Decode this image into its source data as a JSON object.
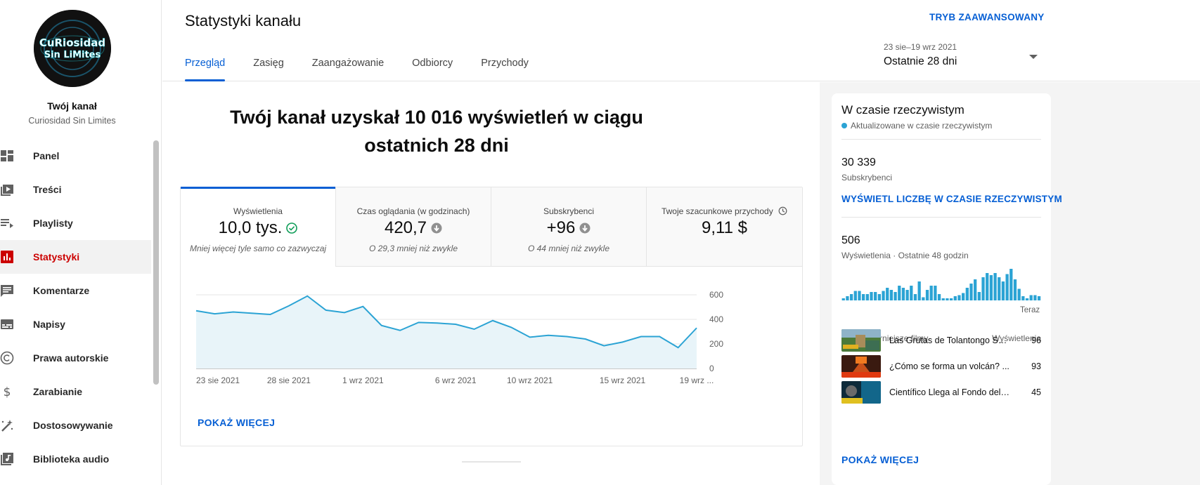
{
  "sidebar": {
    "avatar_text": "CuRiosidad Sin LiMites",
    "channel_title": "Twój kanał",
    "channel_name": "Curiosidad Sin Limites",
    "items": [
      {
        "label": "Panel",
        "icon": "dashboard-icon",
        "active": false
      },
      {
        "label": "Treści",
        "icon": "content-icon",
        "active": false
      },
      {
        "label": "Playlisty",
        "icon": "playlist-icon",
        "active": false
      },
      {
        "label": "Statystyki",
        "icon": "analytics-icon",
        "active": true
      },
      {
        "label": "Komentarze",
        "icon": "comments-icon",
        "active": false
      },
      {
        "label": "Napisy",
        "icon": "subtitles-icon",
        "active": false
      },
      {
        "label": "Prawa autorskie",
        "icon": "copyright-icon",
        "active": false
      },
      {
        "label": "Zarabianie",
        "icon": "dollar-icon",
        "active": false
      },
      {
        "label": "Dostosowywanie",
        "icon": "magic-wand-icon",
        "active": false
      },
      {
        "label": "Biblioteka audio",
        "icon": "audio-library-icon",
        "active": false
      }
    ]
  },
  "header": {
    "title": "Statystyki kanału",
    "advanced_mode": "TRYB ZAAWANSOWANY",
    "tabs": [
      "Przegląd",
      "Zasięg",
      "Zaangażowanie",
      "Odbiorcy",
      "Przychody"
    ],
    "active_tab": "Przegląd",
    "date_range": "23 sie–19 wrz 2021",
    "date_label": "Ostatnie 28 dni"
  },
  "main": {
    "headline": "Twój kanał uzyskał 10 016 wyświetleń w ciągu ostatnich 28 dni",
    "metrics": [
      {
        "title": "Wyświetlenia",
        "value": "10,0 tys.",
        "note": "Mniej więcej tyle samo co zazwyczaj",
        "icon": "check-circle-icon"
      },
      {
        "title": "Czas oglądania (w godzinach)",
        "value": "420,7",
        "note": "O 29,3 mniej niż zwykle",
        "icon": "arrow-down-circle-icon"
      },
      {
        "title": "Subskrybenci",
        "value": "+96",
        "note": "O 44 mniej niż zwykle",
        "icon": "arrow-down-circle-icon"
      },
      {
        "title": "Twoje szacunkowe przychody",
        "value": "9,11 $",
        "note": "",
        "icon": "clock-icon"
      }
    ],
    "show_more": "POKAŻ WIĘCEJ"
  },
  "chart_data": {
    "type": "area",
    "x": [
      "23 sie 2021",
      "24",
      "25",
      "26",
      "27",
      "28 sie 2021",
      "29",
      "30",
      "31",
      "1 wrz 2021",
      "2",
      "3",
      "4",
      "5",
      "6 wrz 2021",
      "7",
      "8",
      "9",
      "10 wrz 2021",
      "11",
      "12",
      "13",
      "14",
      "15 wrz 2021",
      "16",
      "17",
      "18",
      "19 wrz 2021"
    ],
    "xtick_labels": [
      "23 sie 2021",
      "28 sie 2021",
      "1 wrz 2021",
      "6 wrz 2021",
      "10 wrz 2021",
      "15 wrz 2021",
      "19 wrz ..."
    ],
    "xtick_indices": [
      0,
      5,
      9,
      14,
      18,
      23,
      27
    ],
    "series": [
      {
        "values": [
          470,
          445,
          460,
          450,
          440,
          510,
          590,
          475,
          455,
          505,
          350,
          310,
          375,
          370,
          360,
          320,
          390,
          335,
          255,
          270,
          260,
          240,
          185,
          215,
          260,
          260,
          170,
          330
        ]
      }
    ],
    "ylim": [
      0,
      600
    ],
    "yticks": [
      0,
      200,
      400,
      600
    ],
    "grid": true,
    "color": "#2ba3d4",
    "fill": "#e8f4f9"
  },
  "realtime": {
    "title": "W czasie rzeczywistym",
    "live_text": "Aktualizowane w czasie rzeczywistym",
    "subscribers_value": "30 339",
    "subscribers_label": "Subskrybenci",
    "live_link": "WYŚWIETL LICZBĘ W CZASIE RZECZYWISTYM",
    "views_value": "506",
    "views_label": "Wyświetlenia · Ostatnie 48 godzin",
    "now_label": "Teraz",
    "bars": [
      2,
      4,
      6,
      9,
      9,
      6,
      6,
      8,
      8,
      6,
      9,
      12,
      10,
      8,
      14,
      12,
      10,
      14,
      6,
      18,
      3,
      10,
      14,
      14,
      6,
      2,
      2,
      2,
      4,
      5,
      7,
      12,
      16,
      20,
      8,
      22,
      26,
      24,
      26,
      22,
      18,
      25,
      30,
      20,
      11,
      4,
      2,
      5,
      5,
      4
    ],
    "top_header_left": "Najpopularniejsze filmy",
    "top_header_right": "Wyświetlenia",
    "videos": [
      {
        "title": "Las Grutas de Tolantongo Se...",
        "views": "96"
      },
      {
        "title": "¿Cómo se forma un volcán? ...",
        "views": "93"
      },
      {
        "title": "Científico Llega al Fondo del ...",
        "views": "45"
      }
    ],
    "show_more": "POKAŻ WIĘCEJ"
  }
}
